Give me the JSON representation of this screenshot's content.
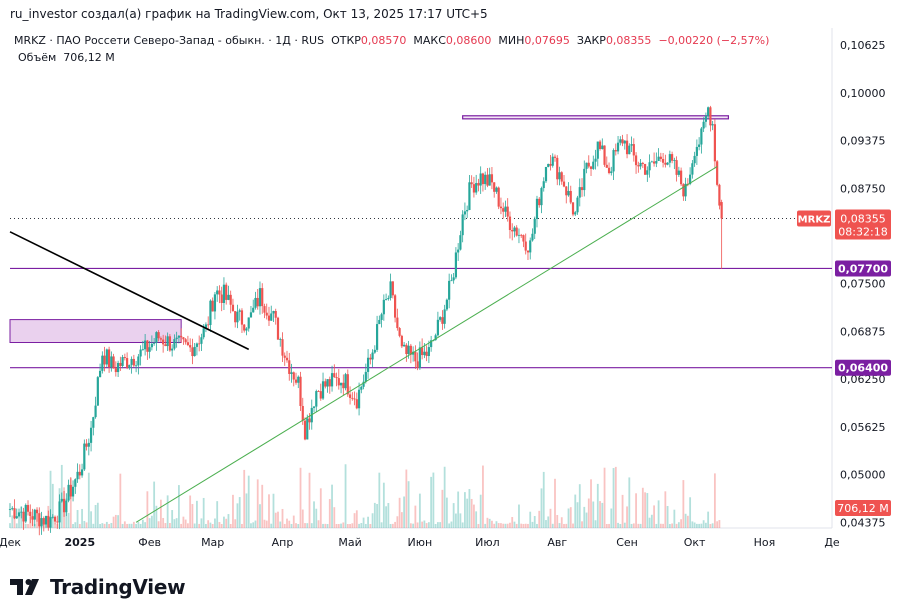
{
  "header": {
    "caption": "ru_investor создал(а) график на TradingView.com, Окт 13, 2025 17:17 UTC+5"
  },
  "legend": {
    "symbol_line": "MRKZ · ПАО Россети Северо-Запад - обыкн. · 1Д · RUS",
    "open_label": "ОТКР",
    "open_value": "0,08570",
    "high_label": "МАКС",
    "high_value": "0,08600",
    "low_label": "МИН",
    "low_value": "0,07695",
    "close_label": "ЗАКР",
    "close_value": "0,08355",
    "change_value": "−0,00220 (−2,57%)",
    "volume_label": "Объём",
    "volume_value": "706,12 M"
  },
  "badges": {
    "price_symbol": "MRKZ",
    "price_value": "0,08355",
    "countdown": "08:32:18",
    "level_upper": "0,07700",
    "level_lower": "0,06400",
    "volume": "706,12 M"
  },
  "footer": {
    "brand": "TradingView"
  },
  "colors": {
    "up": "#26a69a",
    "down": "#ef5350",
    "level": "#7b1fa2",
    "trend_up": "#4caf50",
    "trend_down": "#000000",
    "zone_fill": "#e1bee7"
  },
  "chart_data": {
    "type": "candlestick",
    "symbol": "MRKZ",
    "timeframe": "1Д",
    "y_ticks": [
      0.04375,
      0.05,
      0.05625,
      0.0625,
      0.06875,
      0.075,
      0.0875,
      0.09375,
      0.1,
      0.10625
    ],
    "y_tick_labels": [
      "0,04375",
      "0,05000",
      "0,05625",
      "0,06250",
      "0,06875",
      "0,07500",
      "0,08750",
      "0,09375",
      "0,10000",
      "0,10625"
    ],
    "ylim": [
      0.043,
      0.1085
    ],
    "x_ticks": [
      "Дек",
      "2025",
      "Фев",
      "Мар",
      "Апр",
      "Май",
      "Июн",
      "Июл",
      "Авг",
      "Сен",
      "Окт",
      "Ноя",
      "Де"
    ],
    "x_tick_dates": [
      "2024-12-01",
      "2025-01-01",
      "2025-02-01",
      "2025-03-01",
      "2025-04-01",
      "2025-05-01",
      "2025-06-01",
      "2025-07-01",
      "2025-08-01",
      "2025-09-01",
      "2025-10-01",
      "2025-11-01",
      "2025-12-01"
    ],
    "horizontal_levels": [
      0.077,
      0.064
    ],
    "last_price": 0.08355,
    "zone": {
      "date_from": "2024-12-01",
      "date_to": "2025-02-15",
      "price_from": 0.0673,
      "price_to": 0.0703
    },
    "top_box": {
      "date_from": "2025-06-20",
      "date_to": "2025-10-16",
      "price_top": 0.097,
      "price_bottom": 0.0966
    },
    "trendlines": [
      {
        "name": "support",
        "from": [
          "2025-01-26",
          0.04375
        ],
        "to": [
          "2025-10-11",
          0.09035
        ]
      },
      {
        "name": "resistance",
        "from": [
          "2024-12-01",
          0.0818
        ],
        "to": [
          "2025-03-17",
          0.0664
        ]
      }
    ],
    "price_path": [
      [
        "2024-12-01",
        0.0455
      ],
      [
        "2024-12-10",
        0.0448
      ],
      [
        "2024-12-18",
        0.044
      ],
      [
        "2024-12-24",
        0.0455
      ],
      [
        "2025-01-01",
        0.0505
      ],
      [
        "2025-01-06",
        0.056
      ],
      [
        "2025-01-11",
        0.066
      ],
      [
        "2025-01-16",
        0.064
      ],
      [
        "2025-01-22",
        0.065
      ],
      [
        "2025-01-29",
        0.066
      ],
      [
        "2025-02-05",
        0.068
      ],
      [
        "2025-02-12",
        0.067
      ],
      [
        "2025-02-19",
        0.0665
      ],
      [
        "2025-02-26",
        0.069
      ],
      [
        "2025-03-02",
        0.074
      ],
      [
        "2025-03-06",
        0.0735
      ],
      [
        "2025-03-12",
        0.0705
      ],
      [
        "2025-03-17",
        0.07
      ],
      [
        "2025-03-22",
        0.0735
      ],
      [
        "2025-03-28",
        0.0705
      ],
      [
        "2025-04-03",
        0.065
      ],
      [
        "2025-04-08",
        0.062
      ],
      [
        "2025-04-11",
        0.056
      ],
      [
        "2025-04-16",
        0.061
      ],
      [
        "2025-04-22",
        0.062
      ],
      [
        "2025-04-28",
        0.0625
      ],
      [
        "2025-05-04",
        0.06
      ],
      [
        "2025-05-10",
        0.065
      ],
      [
        "2025-05-15",
        0.071
      ],
      [
        "2025-05-19",
        0.074
      ],
      [
        "2025-05-24",
        0.066
      ],
      [
        "2025-05-30",
        0.065
      ],
      [
        "2025-06-05",
        0.066
      ],
      [
        "2025-06-10",
        0.07
      ],
      [
        "2025-06-15",
        0.075
      ],
      [
        "2025-06-20",
        0.084
      ],
      [
        "2025-06-24",
        0.088
      ],
      [
        "2025-06-28",
        0.089
      ],
      [
        "2025-07-03",
        0.088
      ],
      [
        "2025-07-09",
        0.084
      ],
      [
        "2025-07-14",
        0.082
      ],
      [
        "2025-07-20",
        0.08
      ],
      [
        "2025-07-23",
        0.085
      ],
      [
        "2025-07-28",
        0.092
      ],
      [
        "2025-08-03",
        0.089
      ],
      [
        "2025-08-09",
        0.084
      ],
      [
        "2025-08-14",
        0.09
      ],
      [
        "2025-08-19",
        0.093
      ],
      [
        "2025-08-24",
        0.09
      ],
      [
        "2025-08-30",
        0.094
      ],
      [
        "2025-09-05",
        0.091
      ],
      [
        "2025-09-11",
        0.09
      ],
      [
        "2025-09-17",
        0.092
      ],
      [
        "2025-09-22",
        0.09
      ],
      [
        "2025-09-27",
        0.087
      ],
      [
        "2025-10-01",
        0.093
      ],
      [
        "2025-10-04",
        0.094
      ],
      [
        "2025-10-07",
        0.098
      ],
      [
        "2025-10-09",
        0.096
      ],
      [
        "2025-10-11",
        0.088
      ],
      [
        "2025-10-13",
        0.08355
      ]
    ],
    "last_candle": {
      "open": 0.0857,
      "high": 0.086,
      "low": 0.07695,
      "close": 0.08355
    },
    "volume_last": 706.12
  }
}
